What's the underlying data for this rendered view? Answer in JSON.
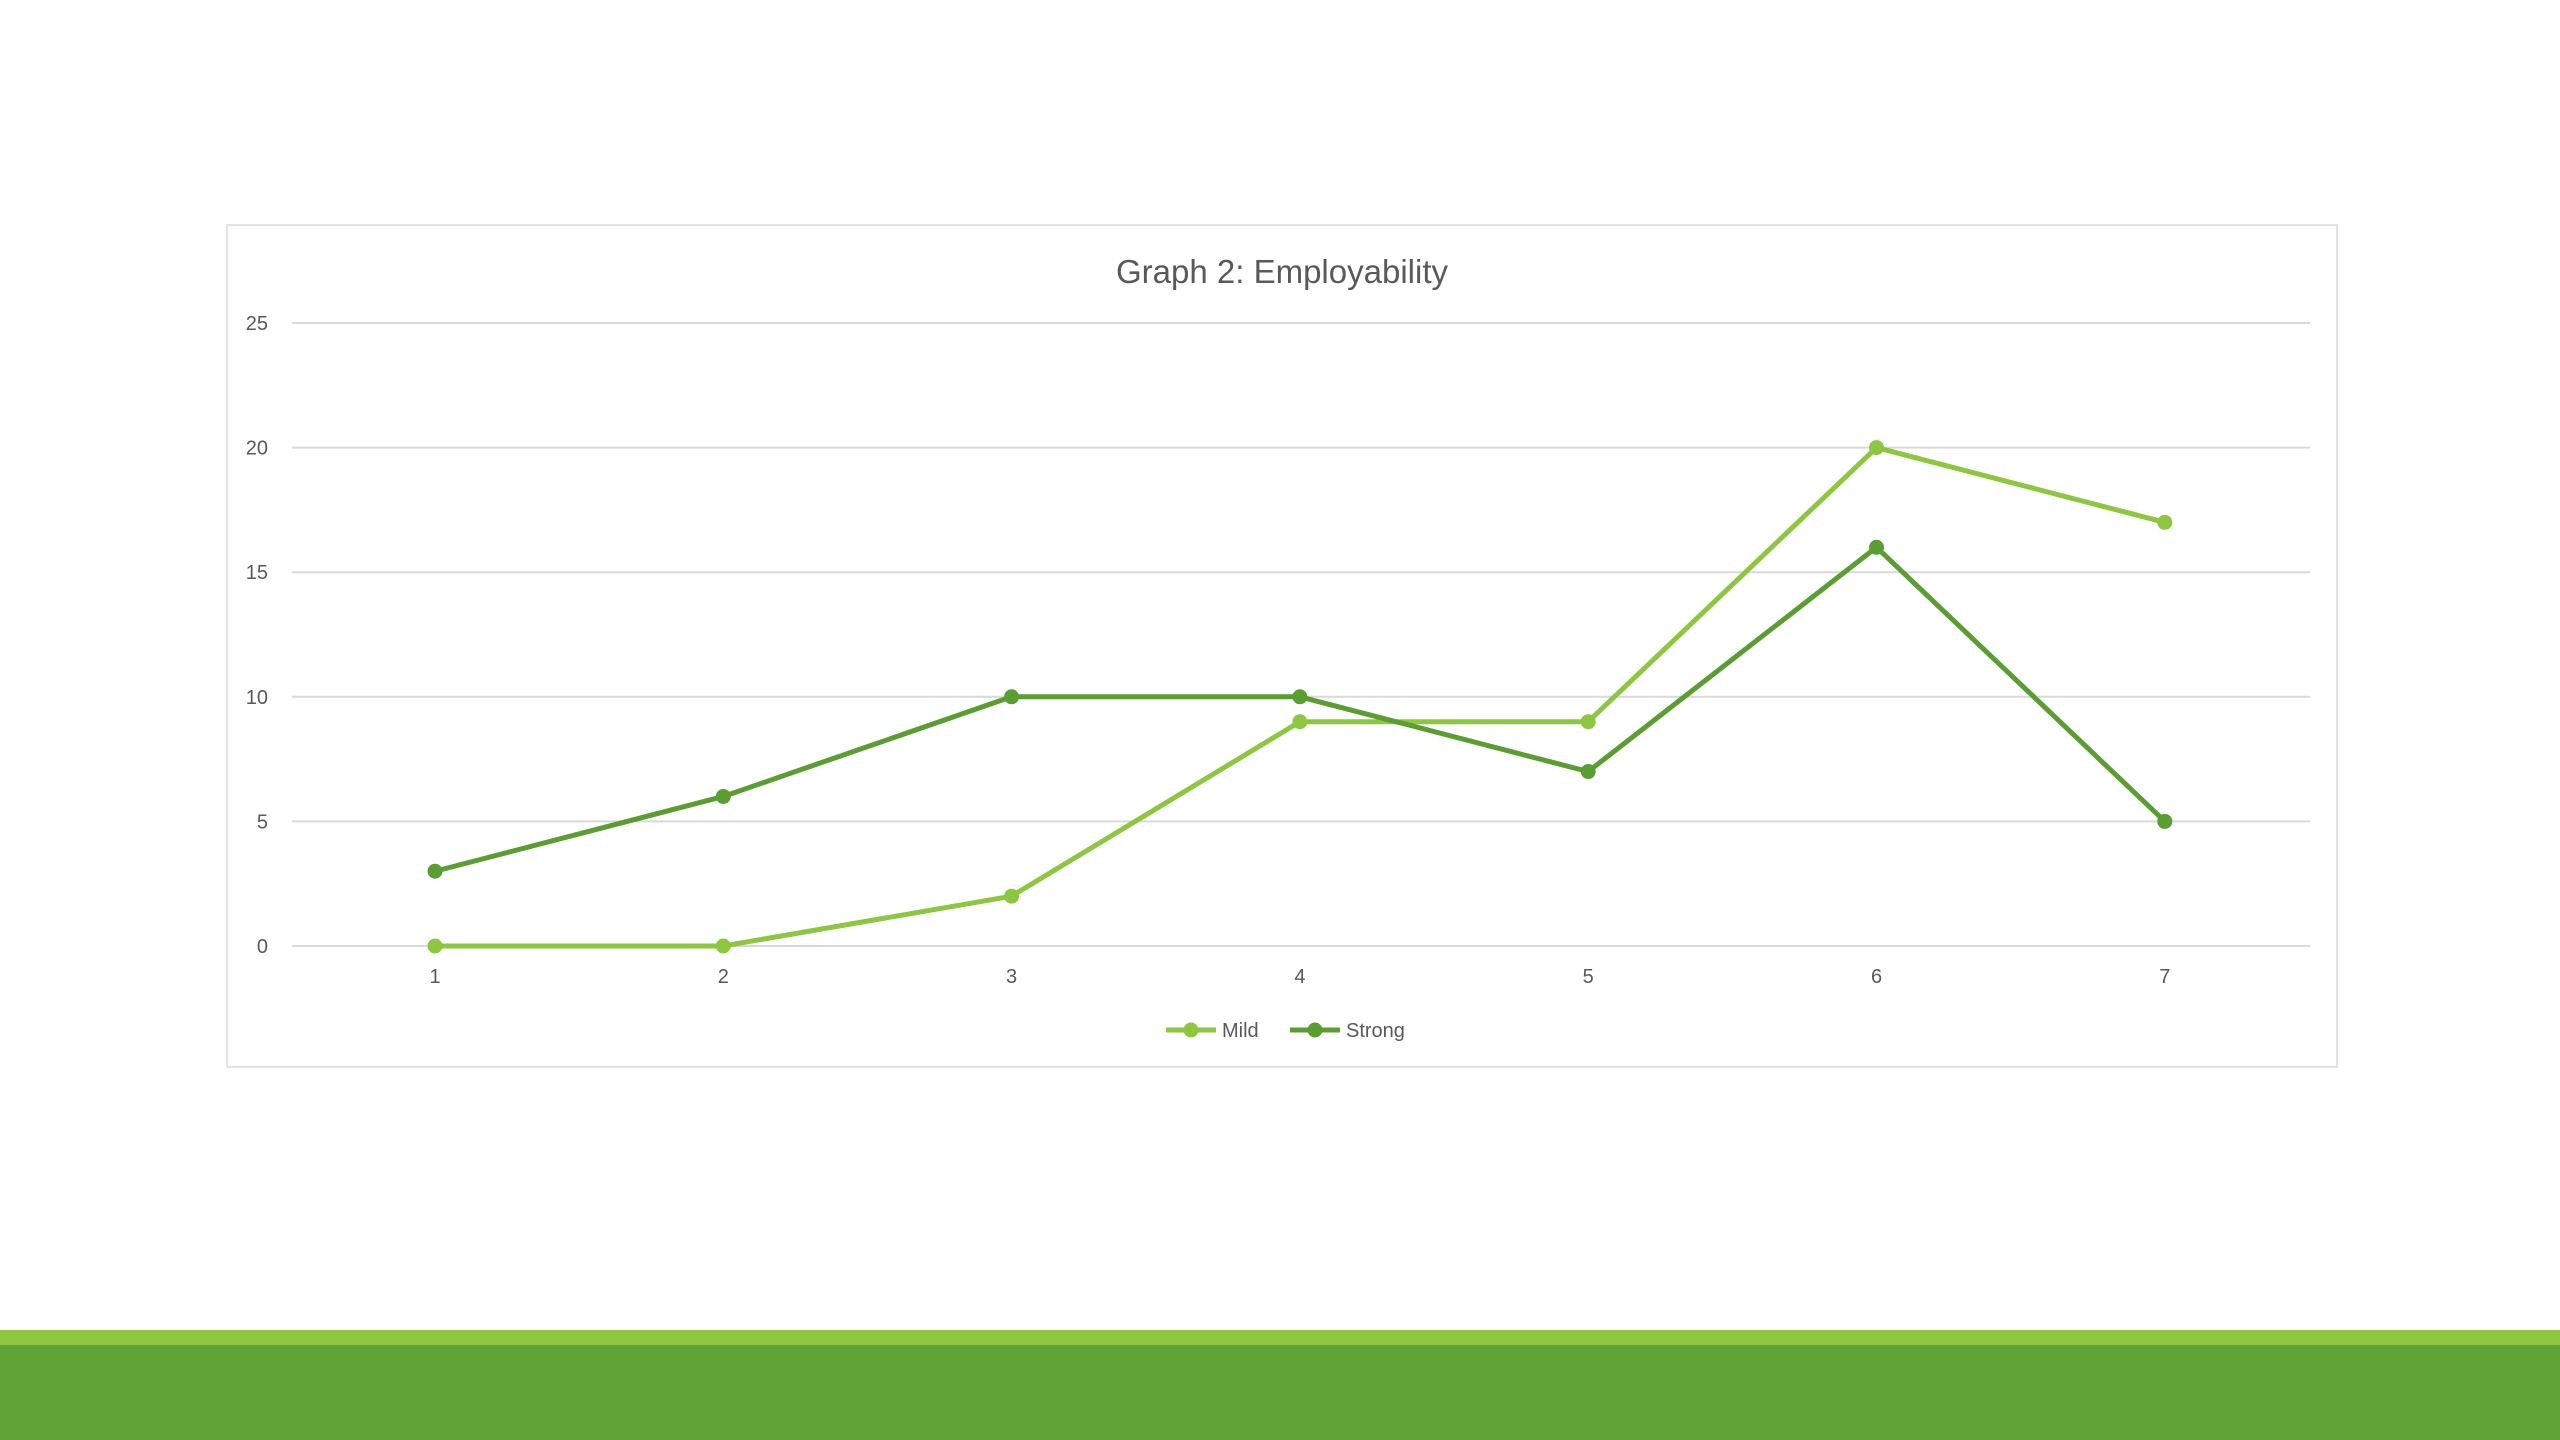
{
  "chart_data": {
    "type": "line",
    "title": "Graph 2: Employability",
    "xlabel": "",
    "ylabel": "",
    "categories": [
      "1",
      "2",
      "3",
      "4",
      "5",
      "6",
      "7"
    ],
    "ylim": [
      0,
      25
    ],
    "yticks": [
      "0",
      "5",
      "10",
      "15",
      "20",
      "25"
    ],
    "grid": true,
    "legend_position": "bottom",
    "series": [
      {
        "name": "Mild",
        "color": "#8dc63f",
        "values": [
          0,
          0,
          2,
          9,
          9,
          20,
          17
        ]
      },
      {
        "name": "Strong",
        "color": "#5a9e32",
        "values": [
          3,
          6,
          10,
          10,
          7,
          16,
          5
        ]
      }
    ]
  },
  "theme": {
    "footer_light": "#8dc63f",
    "footer_dark": "#62a336",
    "gridline": "#d9d9d9",
    "text": "#595959"
  }
}
